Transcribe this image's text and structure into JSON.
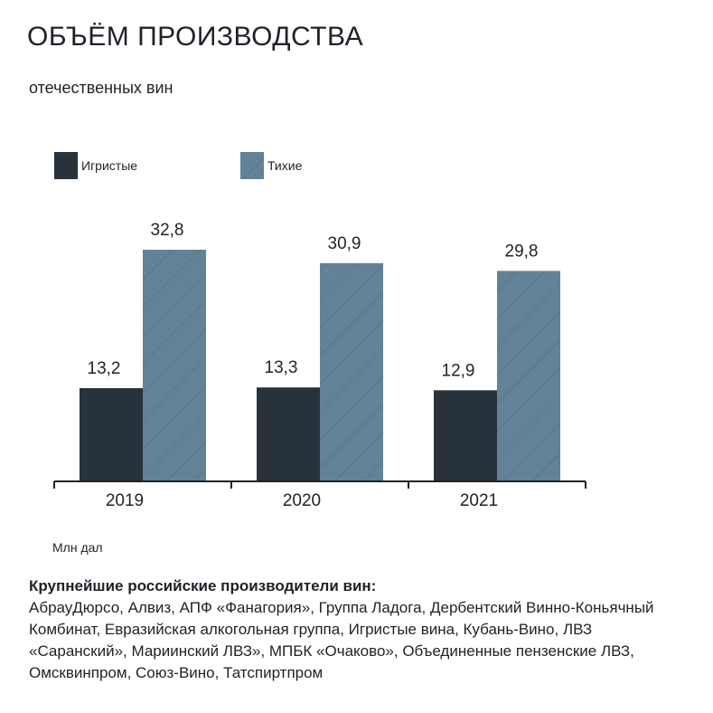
{
  "header": {
    "title": "ОБЪЁМ ПРОИЗВОДСТВА",
    "subtitle": "отечественных вин"
  },
  "chart_data": {
    "type": "bar",
    "categories": [
      "2019",
      "2020",
      "2021"
    ],
    "series": [
      {
        "name": "Игристые",
        "values": [
          13.2,
          13.3,
          12.9
        ],
        "labels": [
          "13,2",
          "13,3",
          "12,9"
        ],
        "color": "#27323b"
      },
      {
        "name": "Тихие",
        "values": [
          32.8,
          30.9,
          29.8
        ],
        "labels": [
          "32,8",
          "30,9",
          "29,8"
        ],
        "color": "#628297"
      }
    ],
    "ylim": [
      0,
      32.8
    ],
    "grid": false,
    "legend": "top-left",
    "unit": "Млн дал"
  },
  "footer": {
    "heading": "Крупнейшие российские производители вин:",
    "text": "АбрауДюрсо, Алвиз, АПФ «Фанагория», Группа Ладога, Дербентский Винно-Коньячный Комбинат, Евразийская алкогольная группа, Игристые вина, Кубань-Вино, ЛВЗ «Саранский», Мариинский ЛВЗ», МПБК «Очаково», Объединенные пензенские ЛВЗ, Омсквинпром, Союз-Вино, Татспиртпром"
  }
}
